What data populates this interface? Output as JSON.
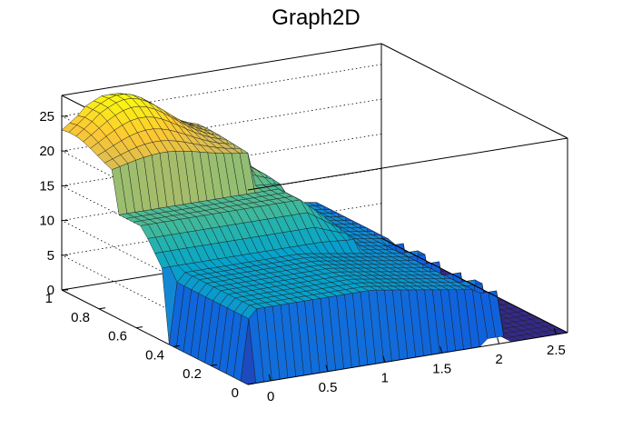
{
  "chart_data": {
    "type": "surface",
    "title": "Graph2D",
    "xlabel": "",
    "ylabel": "",
    "zlabel": "",
    "xlim": [
      -0.2,
      2.6
    ],
    "ylim": [
      0,
      1
    ],
    "zlim": [
      0,
      28
    ],
    "x_ticks": [
      "0",
      "0.5",
      "1",
      "1.5",
      "2",
      "2.5"
    ],
    "x_tick_values": [
      0,
      0.5,
      1,
      1.5,
      2,
      2.5
    ],
    "y_ticks": [
      "0",
      "0.2",
      "0.4",
      "0.6",
      "0.8",
      "1"
    ],
    "y_tick_values": [
      0,
      0.2,
      0.4,
      0.6,
      0.8,
      1
    ],
    "z_ticks": [
      "0",
      "5",
      "10",
      "15",
      "20",
      "25"
    ],
    "z_tick_values": [
      0,
      5,
      10,
      15,
      20,
      25
    ],
    "grid": true,
    "colormap": "viridis-like (navy to yellow)",
    "colors": [
      "#352a87",
      "#0f5cdd",
      "#1481d6",
      "#06a4ca",
      "#2eb7a4",
      "#87bf77",
      "#d1bb59",
      "#fec832",
      "#f9fb0e"
    ],
    "surface_summary": [
      {
        "region": "plateau 1",
        "x_from": -0.2,
        "x_to": 1.0,
        "y_from": 0,
        "y_to": 1,
        "z": 10
      },
      {
        "region": "plateau 1 fading",
        "x_from": 1.0,
        "x_to": 2.0,
        "y_from": 0,
        "y_to": 1,
        "z": 10
      },
      {
        "region": "plateau 2",
        "x_from": -0.2,
        "x_to": 1.5,
        "y_from": 0.45,
        "y_to": 1,
        "z": 15
      },
      {
        "region": "plateau 3",
        "x_from": -0.2,
        "x_to": 1.3,
        "y_from": 0.75,
        "y_to": 1,
        "z": 20
      },
      {
        "region": "peak",
        "x_center": 0.25,
        "y_center": 0.95,
        "z_max": 27
      }
    ]
  }
}
